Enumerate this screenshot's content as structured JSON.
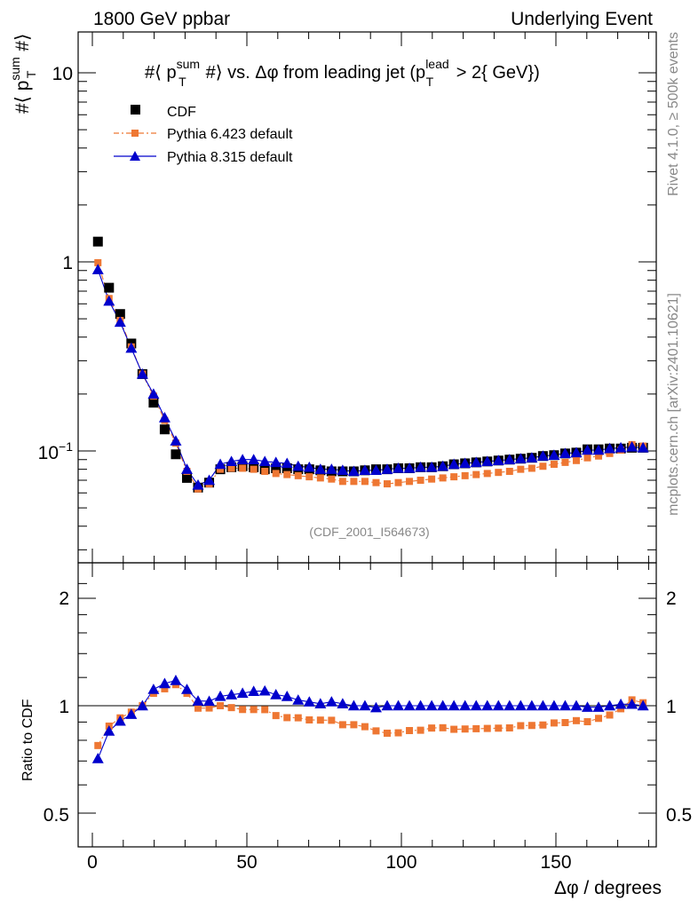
{
  "header": {
    "left": "1800 GeV ppbar",
    "right": "Underlying Event"
  },
  "side_text": {
    "rivet": "Rivet 4.1.0, ≥ 500k events",
    "mcplots": "mcplots.cern.ch [arXiv:2401.10621]"
  },
  "chart_data": {
    "type": "scatter",
    "title": "#⟨ p_T^sum #⟩ vs. Δφ from leading jet  (p_T^lead > 2{ GeV})",
    "title_parts": {
      "pre": "#⟨ p",
      "sup1": "sum",
      "sub1": "T",
      "mid": "#⟩ vs. Δφ from leading jet  (p",
      "sup2": "lead",
      "sub2": "T",
      "post": " > 2{ GeV})"
    },
    "ylabel_parts": {
      "pre": "#⟨ p",
      "sup": "sum",
      "sub": "T",
      "post": "#⟩"
    },
    "xlabel": "Δφ / degrees",
    "ratio_ylabel": "Ratio to CDF",
    "watermark": "(CDF_2001_I564673)",
    "xlim": [
      -5,
      183
    ],
    "ylim": [
      0.027,
      16.5
    ],
    "ylog": true,
    "ratio_ylim": [
      0.37,
      2.35
    ],
    "x_ticks": [
      "0",
      "50",
      "100",
      "150"
    ],
    "y_ticks": [
      "10^-1",
      "1",
      "10"
    ],
    "ratio_ticks": [
      "0.5",
      "1",
      "2"
    ],
    "legend": [
      "CDF",
      "Pythia 6.423 default",
      "Pythia 8.315 default"
    ],
    "x": [
      1.8,
      5.4,
      9.0,
      12.6,
      16.2,
      19.8,
      23.4,
      27.0,
      30.6,
      34.2,
      37.8,
      41.4,
      45.0,
      48.6,
      52.2,
      55.8,
      59.4,
      63.0,
      66.6,
      70.2,
      73.8,
      77.4,
      81.0,
      84.6,
      88.2,
      91.8,
      95.4,
      99.0,
      102.6,
      106.2,
      109.8,
      113.4,
      117.0,
      120.6,
      124.2,
      127.8,
      131.4,
      135.0,
      138.6,
      142.2,
      145.8,
      149.4,
      153.0,
      156.6,
      160.2,
      163.8,
      167.4,
      171.0,
      174.6,
      178.2
    ],
    "series": [
      {
        "name": "CDF",
        "color": "#000000",
        "marker": "square",
        "values": [
          1.28,
          0.73,
          0.53,
          0.37,
          0.255,
          0.18,
          0.13,
          0.096,
          0.072,
          0.064,
          0.068,
          0.08,
          0.082,
          0.083,
          0.082,
          0.08,
          0.081,
          0.081,
          0.08,
          0.08,
          0.079,
          0.078,
          0.078,
          0.078,
          0.079,
          0.08,
          0.08,
          0.081,
          0.081,
          0.082,
          0.082,
          0.083,
          0.085,
          0.086,
          0.087,
          0.088,
          0.089,
          0.09,
          0.091,
          0.092,
          0.094,
          0.095,
          0.097,
          0.098,
          0.102,
          0.102,
          0.103,
          0.103,
          0.104,
          0.104
        ]
      },
      {
        "name": "Pythia 6.423 default",
        "color": "#ee7733",
        "marker": "square",
        "values": [
          0.99,
          0.64,
          0.49,
          0.355,
          0.255,
          0.195,
          0.145,
          0.11,
          0.078,
          0.063,
          0.067,
          0.08,
          0.081,
          0.081,
          0.08,
          0.078,
          0.076,
          0.075,
          0.074,
          0.073,
          0.072,
          0.071,
          0.069,
          0.069,
          0.069,
          0.068,
          0.067,
          0.068,
          0.069,
          0.07,
          0.071,
          0.072,
          0.073,
          0.074,
          0.075,
          0.076,
          0.077,
          0.078,
          0.08,
          0.081,
          0.083,
          0.085,
          0.087,
          0.089,
          0.092,
          0.094,
          0.097,
          0.101,
          0.108,
          0.106
        ]
      },
      {
        "name": "Pythia 8.315 default",
        "color": "#0000cc",
        "marker": "triangle",
        "values": [
          0.91,
          0.62,
          0.48,
          0.35,
          0.255,
          0.2,
          0.15,
          0.113,
          0.08,
          0.066,
          0.07,
          0.085,
          0.088,
          0.09,
          0.09,
          0.088,
          0.087,
          0.086,
          0.083,
          0.082,
          0.08,
          0.08,
          0.079,
          0.078,
          0.079,
          0.079,
          0.08,
          0.081,
          0.081,
          0.082,
          0.082,
          0.083,
          0.085,
          0.086,
          0.087,
          0.088,
          0.089,
          0.09,
          0.091,
          0.092,
          0.094,
          0.095,
          0.097,
          0.098,
          0.101,
          0.101,
          0.103,
          0.104,
          0.105,
          0.104
        ]
      }
    ]
  }
}
